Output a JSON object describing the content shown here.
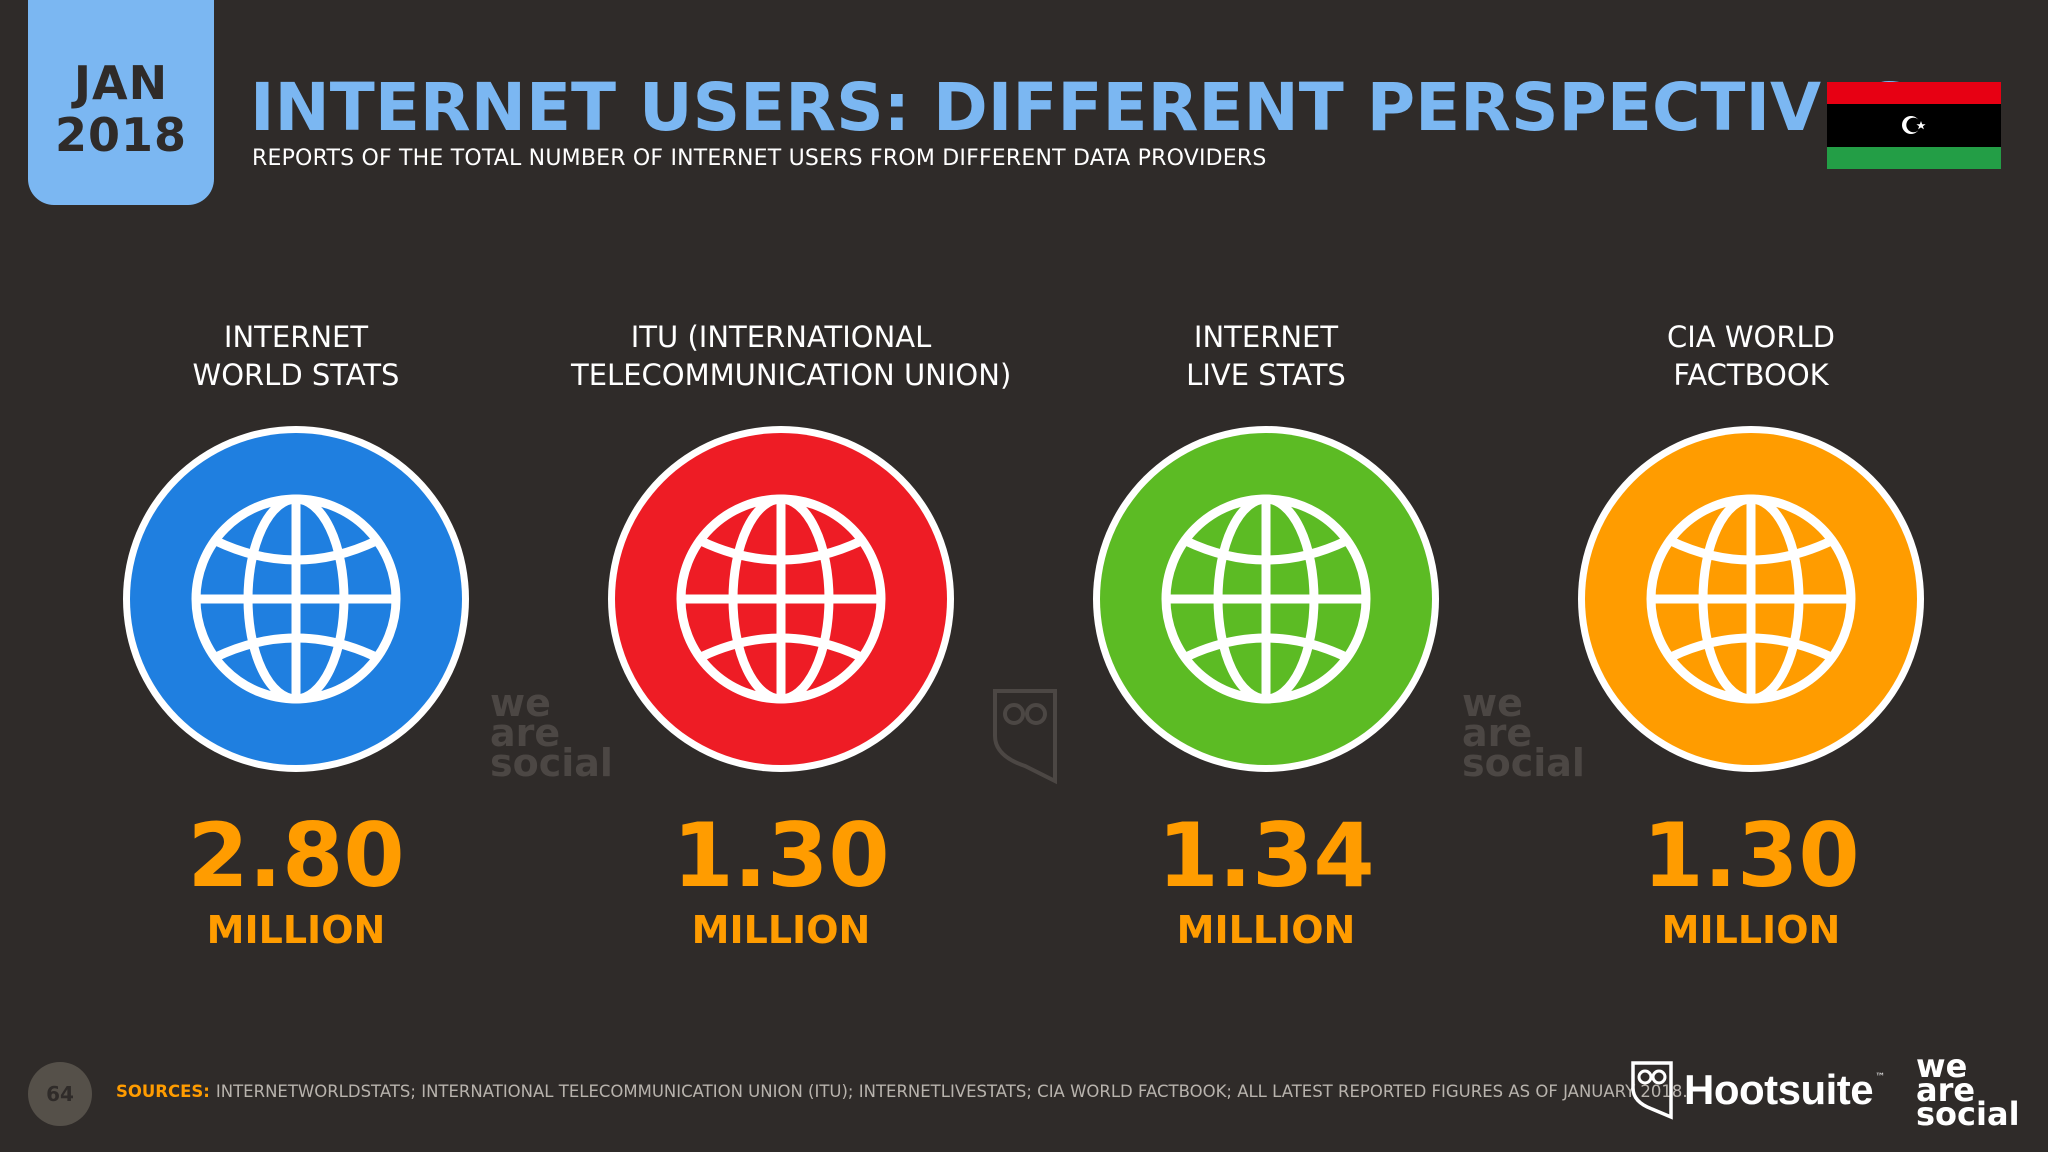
{
  "header": {
    "date_month": "JAN",
    "date_year": "2018",
    "title": "INTERNET USERS: DIFFERENT PERSPECTIVES",
    "subtitle": "REPORTS OF THE TOTAL NUMBER OF INTERNET USERS FROM DIFFERENT DATA PROVIDERS"
  },
  "flag": {
    "country": "Libya",
    "colors": [
      "#e70013",
      "#000000",
      "#239e46"
    ]
  },
  "providers": [
    {
      "label_line1": "INTERNET",
      "label_line2": "WORLD STATS",
      "value": "2.80",
      "unit": "MILLION",
      "color": "#1f7fe0",
      "icon": "globe-icon"
    },
    {
      "label_line1": "ITU (INTERNATIONAL",
      "label_line2": "TELECOMMUNICATION UNION)",
      "value": "1.30",
      "unit": "MILLION",
      "color": "#ee1c25",
      "icon": "globe-icon"
    },
    {
      "label_line1": "INTERNET",
      "label_line2": "LIVE STATS",
      "value": "1.34",
      "unit": "MILLION",
      "color": "#5cbb24",
      "icon": "globe-icon"
    },
    {
      "label_line1": "CIA WORLD",
      "label_line2": "FACTBOOK",
      "value": "1.30",
      "unit": "MILLION",
      "color": "#ff9c00",
      "icon": "globe-icon"
    }
  ],
  "watermark": {
    "line1": "we",
    "line2": "are",
    "line3": "social"
  },
  "footer": {
    "page_number": "64",
    "sources_label": "SOURCES:",
    "sources_text": "INTERNETWORLDSTATS; INTERNATIONAL TELECOMMUNICATION UNION (ITU); INTERNETLIVESTATS; CIA WORLD FACTBOOK; ALL LATEST REPORTED FIGURES AS OF JANUARY 2018.",
    "brand_hootsuite": "Hootsuite",
    "brand_tm": "™",
    "brand_was_1": "we",
    "brand_was_2": "are",
    "brand_was_3": "social"
  }
}
